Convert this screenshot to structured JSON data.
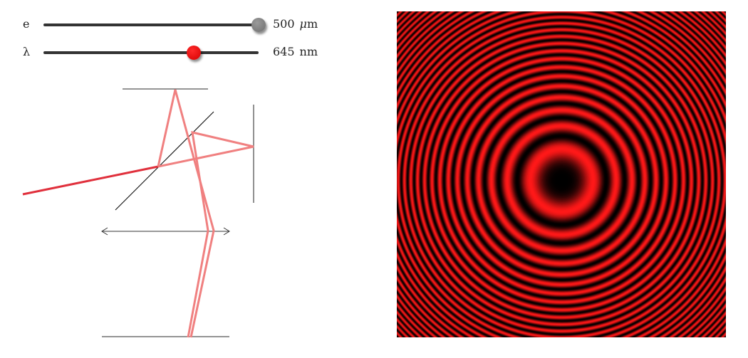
{
  "sliders": {
    "e": {
      "label": "e",
      "value": "500",
      "unit_prefix": "μ",
      "unit_suffix": "m",
      "fraction": 1.0,
      "thumb_color": "#808080"
    },
    "lambda": {
      "label": "λ",
      "value": "645",
      "unit": "nm",
      "fraction": 0.7,
      "thumb_color": "#ee0000"
    }
  },
  "diagram": {
    "mirror_color": "#555555",
    "beam_color": "#f08080",
    "incoming_beam_color": "#e0303c",
    "splitter_color": "#000000"
  },
  "fringes": {
    "ring_color": "#ff1a1a",
    "dark_color": "#000000",
    "center_dark": true
  }
}
